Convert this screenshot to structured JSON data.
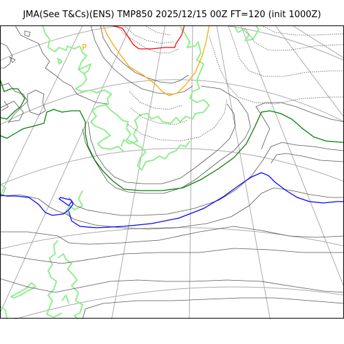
{
  "title": "JMA(See T&Cs)(ENS) TMP850 2025/12/15 00Z FT=120 (init 1000Z)",
  "low_marker": "P",
  "colors": {
    "frame": "#000000",
    "graticule": "#aaaaaa",
    "coastline": "#90ee90",
    "isotherm_minor": "#555555",
    "isotherm_dotted": "#555555",
    "isotherm_0c": "#008000",
    "isotherm_minus6c": "#0000ff",
    "isotherm_minus18c": "#ffa500",
    "isotherm_minus30c": "#ff0000",
    "low_marker": "#ffa500"
  }
}
